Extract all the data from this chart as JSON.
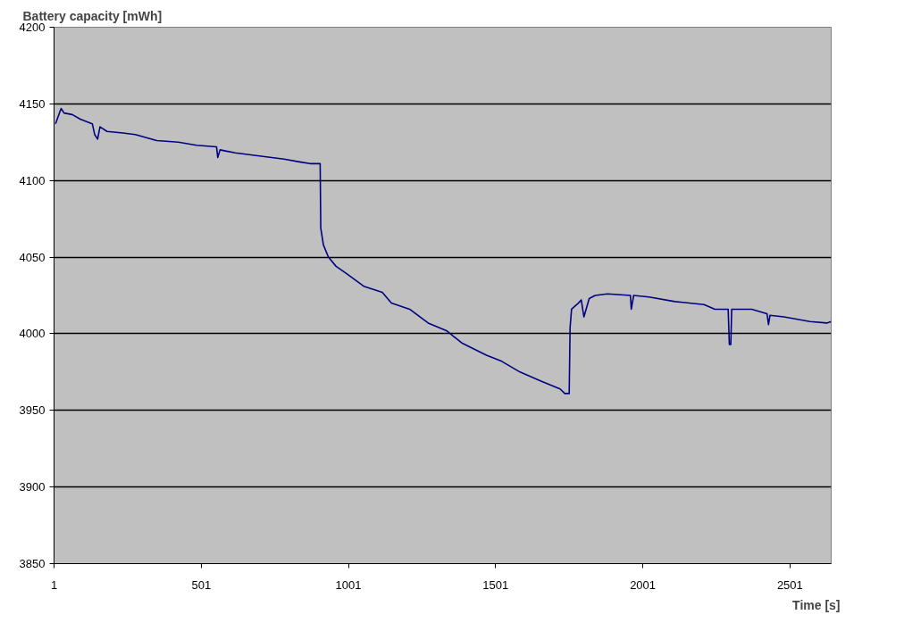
{
  "chart_data": {
    "type": "line",
    "ylabel": "Battery capacity [mWh]",
    "xlabel": "Time [s]",
    "xlim": [
      1,
      2641
    ],
    "xticks": [
      1,
      501,
      1001,
      1501,
      2001,
      2501
    ],
    "ylim": [
      3850,
      4200
    ],
    "yticks": [
      3850,
      3900,
      3950,
      4000,
      4050,
      4100,
      4150,
      4200
    ],
    "grid": "y",
    "series": [
      {
        "color": "#000080",
        "x": [
          6,
          25,
          35,
          63,
          90,
          131,
          139,
          149,
          157,
          181,
          235,
          277,
          350,
          423,
          485,
          553,
          557,
          565,
          616,
          699,
          782,
          839,
          871,
          905,
          907,
          916,
          933,
          959,
          996,
          1053,
          1116,
          1147,
          1209,
          1272,
          1334,
          1386,
          1470,
          1522,
          1584,
          1657,
          1720,
          1736,
          1751,
          1754,
          1759,
          1782,
          1792,
          1801,
          1819,
          1839,
          1881,
          1959,
          1962,
          1970,
          2022,
          2110,
          2209,
          2246,
          2291,
          2295,
          2300,
          2303,
          2371,
          2423,
          2428,
          2433,
          2480,
          2569,
          2626,
          2641
        ],
        "values": [
          4137,
          4147,
          4144,
          4143,
          4140,
          4137,
          4130,
          4127,
          4135,
          4132,
          4131,
          4130,
          4126,
          4125,
          4123,
          4122,
          4115,
          4120,
          4118,
          4116,
          4114,
          4112,
          4111,
          4111,
          4069,
          4058,
          4050,
          4044,
          4039,
          4031,
          4027,
          4020,
          4016,
          4007,
          4002,
          3994,
          3986,
          3982,
          3975,
          3969,
          3964,
          3961,
          3961,
          4004,
          4016,
          4020,
          4022,
          4011,
          4023,
          4025,
          4026,
          4025,
          4016,
          4025,
          4024,
          4021,
          4019,
          4016,
          4016,
          3993,
          3993,
          4016,
          4016,
          4013,
          4006,
          4012,
          4011,
          4008,
          4007,
          4008
        ]
      }
    ]
  }
}
